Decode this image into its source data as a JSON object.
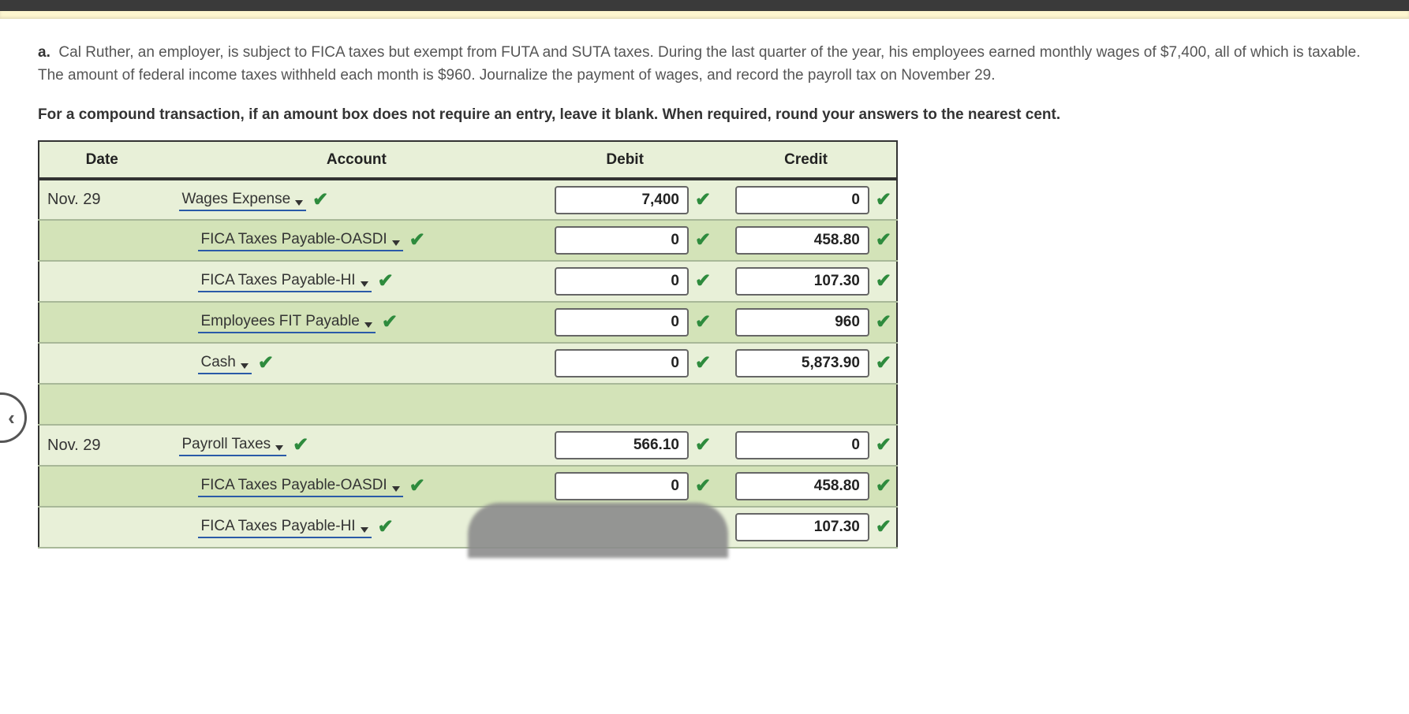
{
  "prompt": {
    "label": "a.",
    "text": "Cal Ruther, an employer, is subject to FICA taxes but exempt from FUTA and SUTA taxes. During the last quarter of the year, his employees earned monthly wages of $7,400, all of which is taxable. The amount of federal income taxes withheld each month is $960. Journalize the payment of wages, and record the payroll tax on November 29."
  },
  "instruction": "For a compound transaction, if an amount box does not require an entry, leave it blank. When required, round your answers to the nearest cent.",
  "table": {
    "headers": {
      "date": "Date",
      "account": "Account",
      "debit": "Debit",
      "credit": "Credit"
    },
    "rows": [
      {
        "date": "Nov. 29",
        "account": "Wages Expense",
        "indent": 0,
        "debit": "7,400",
        "credit": "0",
        "alt": false,
        "showDebit": true
      },
      {
        "date": "",
        "account": "FICA Taxes Payable-OASDI",
        "indent": 24,
        "debit": "0",
        "credit": "458.80",
        "alt": true,
        "showDebit": true
      },
      {
        "date": "",
        "account": "FICA Taxes Payable-HI",
        "indent": 24,
        "debit": "0",
        "credit": "107.30",
        "alt": false,
        "showDebit": true
      },
      {
        "date": "",
        "account": "Employees FIT Payable",
        "indent": 24,
        "debit": "0",
        "credit": "960",
        "alt": true,
        "showDebit": true
      },
      {
        "date": "",
        "account": "Cash",
        "indent": 24,
        "debit": "0",
        "credit": "5,873.90",
        "alt": false,
        "showDebit": true
      },
      {
        "date": "",
        "account": "",
        "indent": 0,
        "debit": "",
        "credit": "",
        "alt": true,
        "blank": true
      },
      {
        "date": "Nov. 29",
        "account": "Payroll Taxes",
        "indent": 0,
        "debit": "566.10",
        "credit": "0",
        "alt": false,
        "showDebit": true
      },
      {
        "date": "",
        "account": "FICA Taxes Payable-OASDI",
        "indent": 24,
        "debit": "0",
        "credit": "458.80",
        "alt": true,
        "showDebit": true
      },
      {
        "date": "",
        "account": "FICA Taxes Payable-HI",
        "indent": 24,
        "debit": "",
        "credit": "107.30",
        "alt": false,
        "showDebit": false
      }
    ]
  },
  "colors": {
    "header_bg": "#e8f0d8",
    "row_bg": "#e8f0d8",
    "row_alt_bg": "#d3e3b8",
    "border": "#333333",
    "check": "#2e8b3d",
    "underline": "#2a5aa8"
  }
}
